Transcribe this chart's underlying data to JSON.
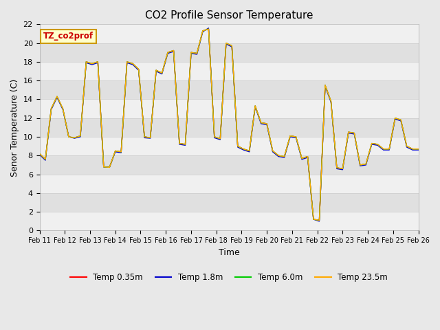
{
  "title": "CO2 Profile Sensor Temperature",
  "xlabel": "Time",
  "ylabel": "Senor Temperature (C)",
  "annotation_text": "TZ_co2prof",
  "annotation_bg": "#ffffcc",
  "annotation_border": "#cc9900",
  "ylim": [
    0,
    22
  ],
  "yticks": [
    0,
    2,
    4,
    6,
    8,
    10,
    12,
    14,
    16,
    18,
    20,
    22
  ],
  "x_labels": [
    "Feb 11",
    "Feb 12",
    "Feb 13",
    "Feb 14",
    "Feb 15",
    "Feb 16",
    "Feb 17",
    "Feb 18",
    "Feb 19",
    "Feb 20",
    "Feb 21",
    "Feb 22",
    "Feb 23",
    "Feb 24",
    "Feb 25",
    "Feb 26"
  ],
  "series_colors": [
    "#ff0000",
    "#0000cc",
    "#00cc00",
    "#ffaa00"
  ],
  "series_labels": [
    "Temp 0.35m",
    "Temp 1.8m",
    "Temp 6.0m",
    "Temp 23.5m"
  ],
  "fig_bg": "#e8e8e8",
  "plot_bg": "#e8e8e8",
  "band_light": "#f0f0f0",
  "band_dark": "#e0e0e0",
  "temp_data": [
    [
      8.2,
      7.6,
      13.0,
      14.3,
      13.0,
      10.0,
      9.9,
      10.1,
      18.0,
      17.8,
      18.0,
      6.8,
      6.75,
      8.5,
      8.4,
      18.0,
      17.8,
      17.2,
      10.0,
      9.9,
      17.1,
      16.8,
      19.0,
      19.2,
      9.3,
      9.2,
      19.0,
      18.9,
      21.3,
      21.5,
      10.0,
      9.8,
      20.0,
      19.7,
      9.0,
      8.7,
      8.5,
      13.3,
      11.5,
      11.4,
      8.5,
      8.0,
      7.9,
      10.1,
      10.0,
      7.7,
      7.9,
      1.2,
      1.1,
      15.5,
      13.8,
      6.7,
      6.6,
      10.5,
      10.4,
      7.0,
      7.1,
      9.3,
      9.2,
      8.7,
      8.7,
      12.0,
      11.8,
      9.0,
      8.7,
      8.7
    ],
    [
      8.1,
      7.5,
      12.9,
      14.2,
      12.9,
      10.0,
      9.85,
      10.0,
      17.9,
      17.7,
      17.9,
      6.8,
      6.75,
      8.4,
      8.3,
      17.9,
      17.7,
      17.1,
      9.9,
      9.85,
      17.0,
      16.7,
      18.9,
      19.1,
      9.2,
      9.1,
      18.9,
      18.8,
      21.2,
      21.6,
      9.9,
      9.7,
      19.9,
      19.6,
      8.9,
      8.6,
      8.4,
      13.2,
      11.4,
      11.3,
      8.4,
      7.9,
      7.8,
      10.0,
      9.9,
      7.6,
      7.8,
      1.2,
      1.0,
      15.4,
      13.7,
      6.6,
      6.5,
      10.4,
      10.3,
      6.9,
      7.0,
      9.2,
      9.1,
      8.6,
      8.6,
      11.9,
      11.7,
      8.9,
      8.6,
      8.6
    ],
    [
      8.2,
      7.6,
      13.0,
      14.3,
      13.0,
      10.0,
      9.9,
      10.1,
      18.0,
      17.8,
      18.0,
      6.8,
      6.75,
      8.5,
      8.4,
      18.0,
      17.8,
      17.2,
      10.0,
      9.9,
      17.1,
      16.8,
      19.0,
      19.2,
      9.3,
      9.2,
      19.0,
      18.9,
      21.3,
      21.5,
      10.0,
      9.8,
      20.0,
      19.7,
      9.0,
      8.7,
      8.5,
      13.3,
      11.5,
      11.4,
      8.5,
      8.0,
      7.9,
      10.1,
      10.0,
      7.7,
      7.9,
      1.2,
      1.1,
      15.5,
      13.8,
      6.7,
      6.6,
      10.5,
      10.4,
      7.0,
      7.1,
      9.3,
      9.2,
      8.7,
      8.7,
      12.0,
      11.8,
      9.0,
      8.7,
      8.7
    ],
    [
      8.2,
      7.6,
      13.0,
      14.3,
      13.0,
      10.0,
      9.9,
      10.1,
      18.0,
      17.8,
      18.0,
      6.8,
      6.75,
      8.5,
      8.4,
      18.0,
      17.8,
      17.2,
      10.0,
      9.9,
      17.1,
      16.8,
      19.0,
      19.2,
      9.3,
      9.2,
      19.0,
      18.9,
      21.3,
      21.5,
      10.0,
      9.8,
      20.0,
      19.7,
      9.0,
      8.7,
      8.5,
      13.3,
      11.5,
      11.4,
      8.5,
      8.0,
      7.9,
      10.1,
      10.0,
      7.7,
      7.9,
      1.2,
      1.1,
      15.5,
      13.8,
      6.7,
      6.6,
      10.5,
      10.4,
      7.0,
      7.1,
      9.3,
      9.2,
      8.7,
      8.7,
      12.0,
      11.8,
      9.0,
      8.7,
      8.7
    ]
  ]
}
